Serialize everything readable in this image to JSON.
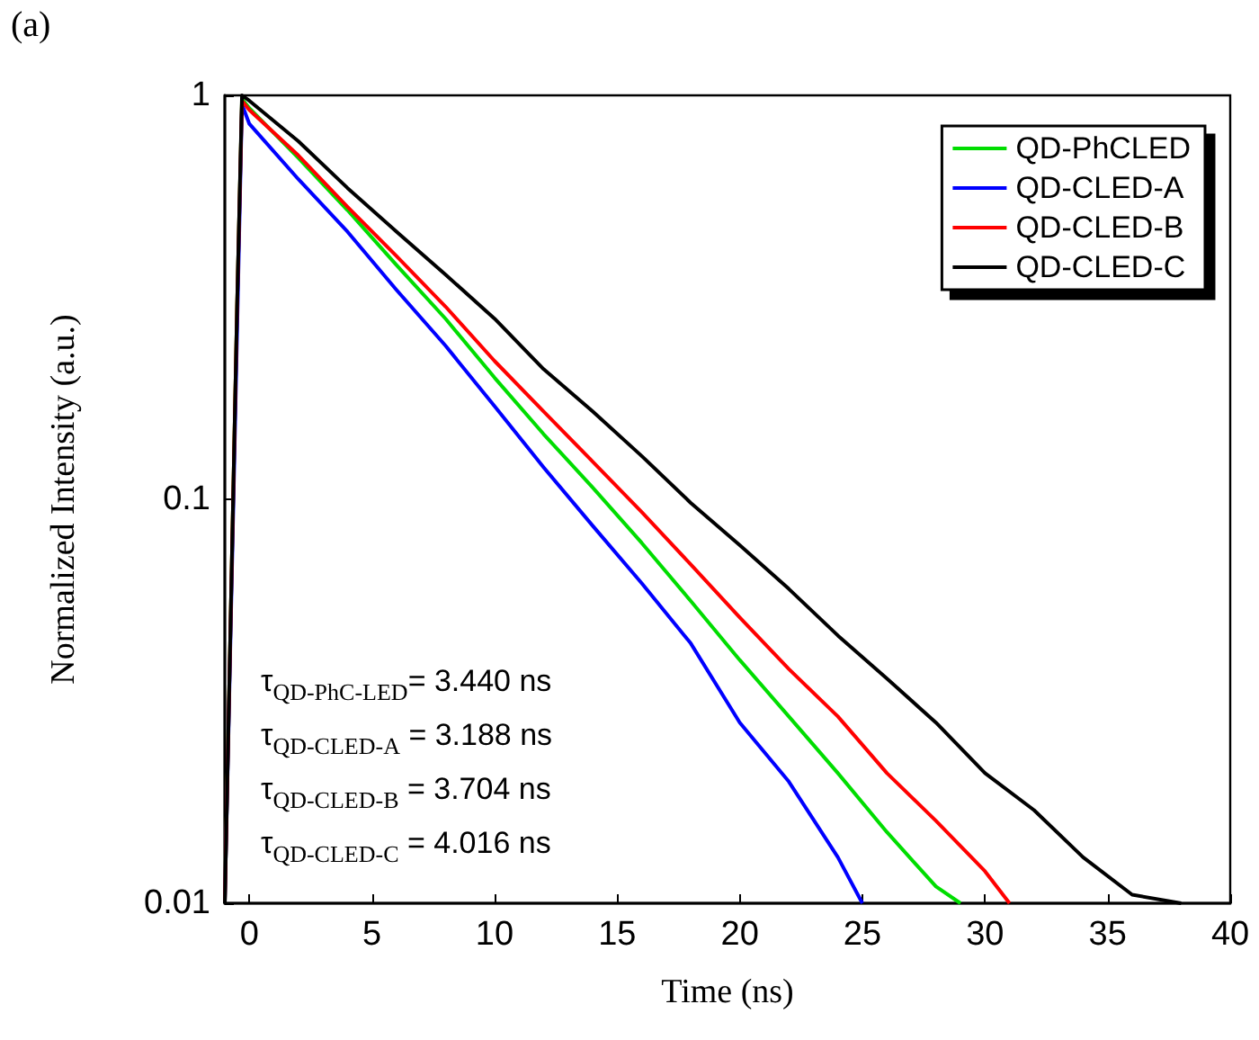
{
  "chart_data": {
    "type": "line",
    "xlabel": "Time (ns)",
    "ylabel": "Normalized Intensity (a.u.)",
    "log": "y",
    "xlim": [
      -1,
      40
    ],
    "xticks": [
      0,
      5,
      10,
      15,
      20,
      25,
      30,
      35,
      40
    ],
    "ylim": [
      0.01,
      1
    ],
    "yticks": [
      1,
      0.1,
      0.01
    ],
    "legend": "top right",
    "grid": false,
    "marker": "none",
    "line_style": "solid",
    "annotations": [
      "(a)",
      "τ$_{QD-PhC-LED}$= 3.440 ns",
      "τ$_{QD-CLED-A}$ = 3.188 ns",
      "τ$_{QD-CLED-B}$ = 3.704 ns",
      "τ$_{QD-CLED-C}$ = 4.016 ns"
    ],
    "series": [
      {
        "name": "QD-PhCLED",
        "color": "#00dd00",
        "x": [
          -1,
          -0.5,
          -0.3,
          0,
          2,
          4,
          6,
          8,
          10,
          12,
          14,
          16,
          18,
          20,
          22,
          24,
          26,
          28,
          29
        ],
        "values": [
          0.01,
          0.3,
          0.98,
          0.93,
          0.7,
          0.52,
          0.38,
          0.28,
          0.2,
          0.145,
          0.107,
          0.078,
          0.056,
          0.04,
          0.029,
          0.021,
          0.015,
          0.011,
          0.01
        ]
      },
      {
        "name": "QD-CLED-A",
        "color": "#0000ff",
        "x": [
          -1,
          -0.3,
          0,
          2,
          4,
          6,
          8,
          10,
          12,
          14,
          16,
          18,
          20,
          22,
          24,
          25
        ],
        "values": [
          0.01,
          0.95,
          0.85,
          0.62,
          0.46,
          0.33,
          0.24,
          0.17,
          0.12,
          0.086,
          0.062,
          0.044,
          0.028,
          0.02,
          0.013,
          0.01
        ]
      },
      {
        "name": "QD-CLED-B",
        "color": "#ff0000",
        "x": [
          -1,
          -0.5,
          -0.3,
          0,
          2,
          4,
          6,
          8,
          10,
          12,
          14,
          16,
          18,
          20,
          22,
          24,
          26,
          28,
          30,
          31
        ],
        "values": [
          0.01,
          0.3,
          0.97,
          0.92,
          0.71,
          0.53,
          0.4,
          0.3,
          0.22,
          0.165,
          0.124,
          0.093,
          0.069,
          0.051,
          0.038,
          0.029,
          0.021,
          0.016,
          0.012,
          0.01
        ]
      },
      {
        "name": "QD-CLED-C",
        "color": "#000000",
        "x": [
          -1,
          -0.5,
          -0.3,
          0,
          2,
          4,
          6,
          8,
          10,
          12,
          14,
          16,
          18,
          20,
          22,
          24,
          26,
          28,
          30,
          32,
          34,
          36,
          38
        ],
        "values": [
          0.01,
          0.3,
          1,
          0.97,
          0.77,
          0.59,
          0.46,
          0.36,
          0.28,
          0.21,
          0.165,
          0.128,
          0.098,
          0.077,
          0.06,
          0.046,
          0.036,
          0.028,
          0.021,
          0.017,
          0.013,
          0.0105,
          0.01
        ]
      }
    ]
  }
}
